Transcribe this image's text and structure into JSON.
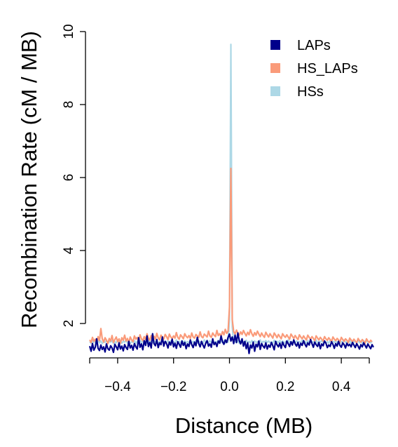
{
  "chart_data": {
    "type": "line",
    "xlabel": "Distance (MB)",
    "ylabel": "Recombination Rate (cM / MB)",
    "xlim": [
      -0.5,
      0.5
    ],
    "ylim": [
      1.2,
      10
    ],
    "xticks": [
      -0.4,
      -0.2,
      0.0,
      0.2,
      0.4
    ],
    "xtick_labels": [
      "−0.4",
      "−0.2",
      "0.0",
      "0.2",
      "0.4"
    ],
    "yticks": [
      2,
      4,
      6,
      8,
      10
    ],
    "ytick_labels": [
      "2",
      "4",
      "6",
      "8",
      "10"
    ],
    "grid": false,
    "legend_position": "top-right",
    "series": [
      {
        "name": "LAPs",
        "color": "#00008B",
        "x_start": -0.5,
        "x_step": 0.005,
        "values": [
          1.38,
          1.24,
          1.45,
          1.27,
          1.35,
          1.58,
          1.32,
          1.26,
          1.41,
          1.29,
          1.36,
          1.22,
          1.44,
          1.31,
          1.27,
          1.39,
          1.33,
          1.21,
          1.43,
          1.36,
          1.28,
          1.47,
          1.3,
          1.38,
          1.25,
          1.42,
          1.34,
          1.29,
          1.51,
          1.33,
          1.4,
          1.27,
          1.45,
          1.36,
          1.3,
          1.61,
          1.35,
          1.44,
          1.28,
          1.53,
          1.4,
          1.66,
          1.37,
          1.48,
          1.33,
          1.72,
          1.45,
          1.39,
          1.56,
          1.34,
          1.47,
          1.42,
          1.63,
          1.38,
          1.51,
          1.45,
          1.33,
          1.49,
          1.41,
          1.57,
          1.36,
          1.46,
          1.32,
          1.5,
          1.43,
          1.35,
          1.52,
          1.4,
          1.48,
          1.31,
          1.44,
          1.37,
          1.55,
          1.42,
          1.34,
          1.49,
          1.39,
          1.62,
          1.45,
          1.36,
          1.51,
          1.41,
          1.33,
          1.46,
          1.53,
          1.38,
          1.44,
          1.35,
          1.58,
          1.42,
          1.48,
          1.37,
          1.52,
          1.46,
          1.66,
          1.5,
          1.43,
          1.55,
          1.48,
          1.62,
          1.71,
          1.52,
          1.63,
          1.45,
          1.68,
          1.48,
          1.74,
          1.53,
          1.44,
          1.58,
          1.38,
          1.51,
          1.31,
          1.47,
          1.18,
          1.41,
          1.33,
          1.49,
          1.24,
          1.43,
          1.36,
          1.52,
          1.29,
          1.45,
          1.38,
          1.33,
          1.47,
          1.3,
          1.41,
          1.35,
          1.48,
          1.39,
          1.28,
          1.51,
          1.42,
          1.36,
          1.46,
          1.32,
          1.49,
          1.4,
          1.34,
          1.52,
          1.45,
          1.37,
          1.5,
          1.41,
          1.55,
          1.44,
          1.38,
          1.48,
          1.33,
          1.46,
          1.4,
          1.53,
          1.43,
          1.36,
          1.47,
          1.41,
          1.56,
          1.45,
          1.35,
          1.49,
          1.42,
          1.37,
          1.48,
          1.31,
          1.44,
          1.39,
          1.52,
          1.46,
          1.34,
          1.41,
          1.37,
          1.5,
          1.43,
          1.32,
          1.45,
          1.38,
          1.51,
          1.4,
          1.35,
          1.47,
          1.42,
          1.33,
          1.46,
          1.39,
          1.43,
          1.36,
          1.48,
          1.41,
          1.34,
          1.45,
          1.38,
          1.3,
          1.42,
          1.36,
          1.47,
          1.4,
          1.33,
          1.44,
          1.37,
          1.31,
          1.42,
          1.35
        ]
      },
      {
        "name": "HS_LAPs",
        "color": "#FA9B7A",
        "x_start": -0.5,
        "x_step": 0.005,
        "values": [
          1.55,
          1.48,
          1.62,
          1.51,
          1.57,
          1.46,
          1.64,
          1.53,
          1.86,
          1.58,
          1.49,
          1.61,
          1.54,
          1.45,
          1.59,
          1.52,
          1.67,
          1.48,
          1.56,
          1.63,
          1.5,
          1.58,
          1.46,
          1.61,
          1.54,
          1.68,
          1.52,
          1.59,
          1.47,
          1.63,
          1.55,
          1.5,
          1.66,
          1.57,
          1.62,
          1.51,
          1.69,
          1.58,
          1.53,
          1.64,
          1.56,
          1.72,
          1.6,
          1.54,
          1.67,
          1.59,
          1.65,
          1.57,
          1.73,
          1.61,
          1.55,
          1.68,
          1.62,
          1.58,
          1.7,
          1.64,
          1.56,
          1.71,
          1.63,
          1.59,
          1.66,
          1.6,
          1.75,
          1.62,
          1.57,
          1.69,
          1.64,
          1.58,
          1.72,
          1.65,
          1.61,
          1.67,
          1.59,
          1.74,
          1.63,
          1.6,
          1.7,
          1.66,
          1.62,
          1.77,
          1.64,
          1.61,
          1.71,
          1.67,
          1.63,
          1.79,
          1.66,
          1.62,
          1.74,
          1.68,
          1.64,
          1.81,
          1.67,
          1.72,
          1.65,
          1.78,
          1.69,
          1.84,
          1.73,
          1.79,
          2.45,
          6.25,
          2.1,
          1.78,
          1.71,
          1.82,
          1.74,
          1.68,
          1.77,
          1.7,
          1.81,
          1.73,
          1.66,
          1.76,
          1.69,
          1.83,
          1.72,
          1.65,
          1.75,
          1.68,
          1.79,
          1.71,
          1.64,
          1.74,
          1.67,
          1.62,
          1.76,
          1.69,
          1.63,
          1.72,
          1.66,
          1.6,
          1.74,
          1.68,
          1.61,
          1.7,
          1.64,
          1.58,
          1.72,
          1.66,
          1.62,
          1.69,
          1.63,
          1.57,
          1.71,
          1.65,
          1.59,
          1.67,
          1.61,
          1.56,
          1.69,
          1.63,
          1.58,
          1.66,
          1.6,
          1.55,
          1.68,
          1.62,
          1.57,
          1.64,
          1.59,
          1.53,
          1.66,
          1.6,
          1.55,
          1.62,
          1.57,
          1.52,
          1.64,
          1.58,
          1.54,
          1.61,
          1.56,
          1.5,
          1.63,
          1.57,
          1.53,
          1.59,
          1.55,
          1.49,
          1.62,
          1.56,
          1.51,
          1.58,
          1.54,
          1.48,
          1.6,
          1.55,
          1.5,
          1.57,
          1.52,
          1.47,
          1.59,
          1.53,
          1.49,
          1.56,
          1.51,
          1.46,
          1.58,
          1.52,
          1.48,
          1.54,
          1.5
        ]
      },
      {
        "name": "HSs",
        "color": "#ADD8E6",
        "x_start": -0.5,
        "x_step": 0.005,
        "values": [
          1.5,
          1.46,
          1.53,
          1.48,
          1.51,
          1.44,
          1.55,
          1.47,
          1.52,
          1.45,
          1.5,
          1.48,
          1.54,
          1.46,
          1.51,
          1.49,
          1.53,
          1.45,
          1.5,
          1.47,
          1.55,
          1.48,
          1.52,
          1.46,
          1.51,
          1.49,
          1.54,
          1.47,
          1.52,
          1.45,
          1.5,
          1.48,
          1.53,
          1.46,
          1.51,
          1.49,
          1.55,
          1.47,
          1.52,
          1.48,
          1.5,
          1.46,
          1.54,
          1.49,
          1.51,
          1.47,
          1.53,
          1.48,
          1.52,
          1.46,
          1.5,
          1.49,
          1.54,
          1.47,
          1.51,
          1.48,
          1.53,
          1.46,
          1.52,
          1.49,
          1.5,
          1.47,
          1.55,
          1.48,
          1.51,
          1.46,
          1.53,
          1.49,
          1.52,
          1.47,
          1.5,
          1.48,
          1.54,
          1.46,
          1.51,
          1.49,
          1.53,
          1.47,
          1.52,
          1.48,
          1.5,
          1.46,
          1.55,
          1.49,
          1.51,
          1.47,
          1.53,
          1.48,
          1.52,
          1.46,
          1.5,
          1.49,
          1.54,
          1.47,
          1.51,
          1.48,
          1.53,
          1.46,
          1.52,
          1.49,
          2.1,
          9.65,
          1.9,
          1.48,
          1.51,
          1.47,
          1.53,
          1.46,
          1.52,
          1.49,
          1.5,
          1.48,
          1.54,
          1.47,
          1.51,
          1.46,
          1.53,
          1.49,
          1.52,
          1.48,
          1.5,
          1.47,
          1.55,
          1.46,
          1.51,
          1.49,
          1.53,
          1.48,
          1.52,
          1.47,
          1.5,
          1.46,
          1.54,
          1.49,
          1.51,
          1.48,
          1.53,
          1.47,
          1.52,
          1.46,
          1.5,
          1.49,
          1.55,
          1.48,
          1.51,
          1.47,
          1.53,
          1.46,
          1.52,
          1.49,
          1.5,
          1.48,
          1.54,
          1.47,
          1.51,
          1.46,
          1.53,
          1.49,
          1.52,
          1.48,
          1.5,
          1.47,
          1.55,
          1.46,
          1.51,
          1.49,
          1.53,
          1.48,
          1.52,
          1.47,
          1.5,
          1.46,
          1.54,
          1.49,
          1.51,
          1.48,
          1.53,
          1.47,
          1.52,
          1.46,
          1.5,
          1.49,
          1.55,
          1.48,
          1.51,
          1.47,
          1.53,
          1.46,
          1.52,
          1.49,
          1.5,
          1.48,
          1.54,
          1.47,
          1.51,
          1.46,
          1.53,
          1.49,
          1.52,
          1.48,
          1.5,
          1.47,
          1.51
        ]
      }
    ],
    "draw_order": [
      "HSs",
      "HS_LAPs",
      "LAPs"
    ],
    "legend_order": [
      "LAPs",
      "HS_LAPs",
      "HSs"
    ]
  }
}
